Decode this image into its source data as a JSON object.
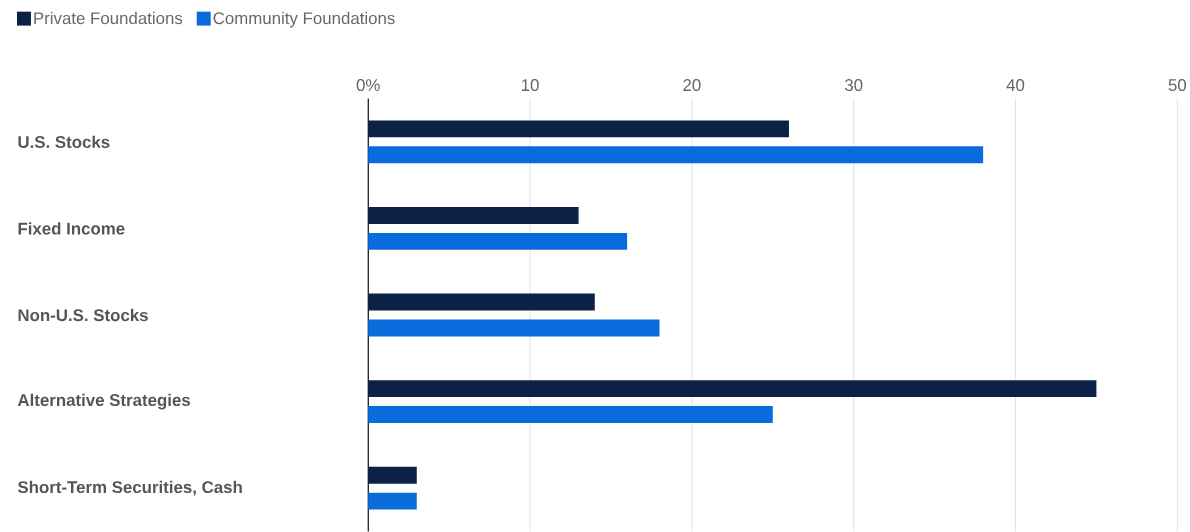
{
  "chart_data": {
    "type": "bar",
    "orientation": "horizontal",
    "categories": [
      "U.S. Stocks",
      "Fixed Income",
      "Non-U.S. Stocks",
      "Alternative Strategies",
      "Short-Term Securities, Cash"
    ],
    "series": [
      {
        "name": "Private Foundations",
        "color": "#0b2145",
        "values": [
          26,
          13,
          14,
          45,
          3
        ]
      },
      {
        "name": "Community Foundations",
        "color": "#0a6bdc",
        "values": [
          38,
          16,
          18,
          25,
          3
        ]
      }
    ],
    "xlim": [
      0,
      50
    ],
    "xticks": [
      {
        "value": 0,
        "label": "0%"
      },
      10,
      20,
      30,
      40,
      50
    ],
    "grid": "x",
    "legend": "top left"
  }
}
